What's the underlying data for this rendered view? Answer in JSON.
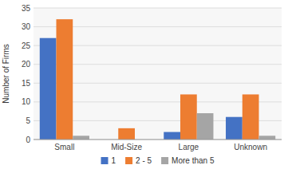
{
  "chart_data": {
    "type": "bar",
    "categories": [
      "Small",
      "Mid-Size",
      "Large",
      "Unknown"
    ],
    "series": [
      {
        "name": "1",
        "color": "#4472C4",
        "values": [
          27,
          0,
          2,
          6
        ]
      },
      {
        "name": "2 - 5",
        "color": "#ED7D31",
        "values": [
          32,
          3,
          12,
          12
        ]
      },
      {
        "name": "More than 5",
        "color": "#A5A5A5",
        "values": [
          1,
          0,
          7,
          1
        ]
      }
    ],
    "y_label": "Number of Firms",
    "ylim": [
      0,
      35
    ],
    "yticks": [
      0,
      5,
      10,
      15,
      20,
      25,
      30,
      35
    ],
    "grid": true,
    "legend": "bottom"
  }
}
